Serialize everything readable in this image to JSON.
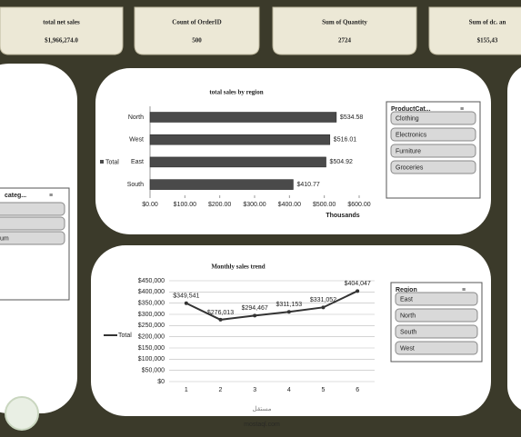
{
  "kpis": [
    {
      "title": "total net sales",
      "value": "$1,966,274.0"
    },
    {
      "title": "Count of OrderID",
      "value": "500"
    },
    {
      "title": "Sum of Quantity",
      "value": "2724"
    },
    {
      "title": "Sum of dc. an",
      "value": "$155,43"
    }
  ],
  "chart_data": [
    {
      "type": "bar",
      "orientation": "horizontal",
      "title": "total  sales by region",
      "x_label": "Thousands",
      "categories": [
        "North",
        "West",
        "East",
        "South"
      ],
      "series": [
        {
          "name": "Total",
          "color": "#4a4a4a",
          "values": [
            534.58,
            516.01,
            504.92,
            410.77
          ],
          "value_labels": [
            "$534.58",
            "$516.01",
            "$504.92",
            "$410.77"
          ]
        }
      ],
      "xlim": [
        0,
        600
      ],
      "xticks": [
        {
          "value": 0,
          "label": "$0.00"
        },
        {
          "value": 100,
          "label": "$100.00"
        },
        {
          "value": 200,
          "label": "$200.00"
        },
        {
          "value": 300,
          "label": "$300.00"
        },
        {
          "value": 400,
          "label": "$400.00"
        },
        {
          "value": 500,
          "label": "$500.00"
        },
        {
          "value": 600,
          "label": "$600.00"
        }
      ],
      "legend": "left"
    },
    {
      "type": "line",
      "title": "Monthly sales trend",
      "x": [
        1,
        2,
        3,
        4,
        5,
        6
      ],
      "xlim": [
        0.5,
        6.5
      ],
      "xticks": [
        1,
        2,
        3,
        4,
        5,
        6
      ],
      "series": [
        {
          "name": "Total",
          "color": "#333333",
          "values": [
            349541,
            276013,
            294467,
            311153,
            331052,
            404047
          ],
          "value_labels": [
            "$349,541",
            "$276,013",
            "$294,467",
            "$311,153",
            "$331,052",
            "$404,047"
          ]
        }
      ],
      "ylim": [
        0,
        450000
      ],
      "yticks": [
        {
          "value": 0,
          "label": "$0"
        },
        {
          "value": 50000,
          "label": "$50,000"
        },
        {
          "value": 100000,
          "label": "$100,000"
        },
        {
          "value": 150000,
          "label": "$150,000"
        },
        {
          "value": 200000,
          "label": "$200,000"
        },
        {
          "value": 250000,
          "label": "$250,000"
        },
        {
          "value": 300000,
          "label": "$300,000"
        },
        {
          "value": 350000,
          "label": "$350,000"
        },
        {
          "value": 400000,
          "label": "$400,000"
        },
        {
          "value": 450000,
          "label": "$450,000"
        }
      ],
      "grid": true,
      "legend": "left"
    }
  ],
  "slicers": [
    {
      "title": "ProductCat...",
      "items": [
        "Clothing",
        "Electronics",
        "Furniture",
        "Groceries"
      ]
    },
    {
      "title": "Region",
      "items": [
        "East",
        "North",
        "South",
        "West"
      ]
    },
    {
      "title": "categ...",
      "items": [
        "um"
      ]
    }
  ],
  "watermark": {
    "arabic": "مستقل",
    "latin": "mostaql.com"
  }
}
